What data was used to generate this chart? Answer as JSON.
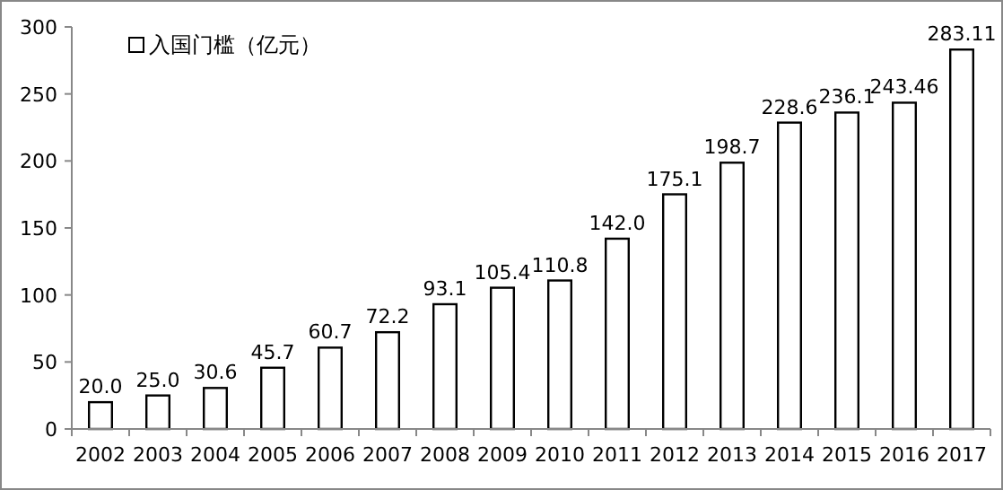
{
  "chart_data": {
    "type": "bar",
    "categories": [
      "2002",
      "2003",
      "2004",
      "2005",
      "2006",
      "2007",
      "2008",
      "2009",
      "2010",
      "2011",
      "2012",
      "2013",
      "2014",
      "2015",
      "2016",
      "2017"
    ],
    "series": [
      {
        "name": "入国门槛（亿元）",
        "color": "#ffffff",
        "values": [
          20.0,
          25.0,
          30.6,
          45.7,
          60.7,
          72.2,
          93.1,
          105.4,
          110.8,
          142.0,
          175.1,
          198.7,
          228.6,
          236.1,
          243.46,
          283.11
        ],
        "value_labels": [
          "20.0",
          "25.0",
          "30.6",
          "45.7",
          "60.7",
          "72.2",
          "93.1",
          "105.4",
          "110.8",
          "142.0",
          "175.1",
          "198.7",
          "228.6",
          "236.1",
          "243.46",
          "283.11"
        ]
      }
    ],
    "ylim": [
      0,
      300
    ],
    "yticks": [
      0,
      50,
      100,
      150,
      200,
      250,
      300
    ],
    "grid": false,
    "legend": "top left"
  }
}
